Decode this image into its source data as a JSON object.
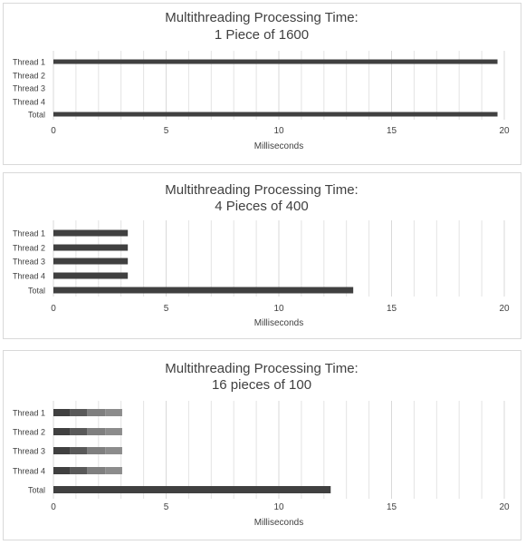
{
  "colors": {
    "bar": "#404040",
    "grid": "#e3e3e3",
    "text": "#404040",
    "border": "#d9d9d9"
  },
  "chart_data": [
    {
      "type": "bar",
      "orientation": "horizontal",
      "title": "Multithreading Processing Time:",
      "subtitle": "1 Piece of 1600",
      "xlabel": "Milliseconds",
      "xlim": [
        0,
        20
      ],
      "xticks": [
        "0",
        "5",
        "10",
        "15",
        "20"
      ],
      "grid": true,
      "categories": [
        "Thread 1",
        "Thread 2",
        "Thread 3",
        "Thread 4",
        "Total"
      ],
      "values": [
        19.7,
        0,
        0,
        0,
        19.7
      ]
    },
    {
      "type": "bar",
      "orientation": "horizontal",
      "title": "Multithreading Processing Time:",
      "subtitle": "4 Pieces of 400",
      "xlabel": "Milliseconds",
      "xlim": [
        0,
        20
      ],
      "xticks": [
        "0",
        "5",
        "10",
        "15",
        "20"
      ],
      "grid": true,
      "categories": [
        "Thread 1",
        "Thread 2",
        "Thread 3",
        "Thread 4",
        "Total"
      ],
      "values": [
        3.3,
        3.3,
        3.3,
        3.3,
        13.3
      ]
    },
    {
      "type": "bar",
      "orientation": "horizontal",
      "stacked": true,
      "title": "Multithreading Processing Time:",
      "subtitle": "16 pieces of 100",
      "xlabel": "Milliseconds",
      "xlim": [
        0,
        20
      ],
      "xticks": [
        "0",
        "5",
        "10",
        "15",
        "20"
      ],
      "grid": true,
      "categories": [
        "Thread 1",
        "Thread 2",
        "Thread 3",
        "Thread 4",
        "Total"
      ],
      "series": [
        {
          "values": [
            0.75,
            0.75,
            0.75,
            0.75,
            12.3
          ],
          "color": "#404040"
        },
        {
          "values": [
            0.75,
            0.75,
            0.75,
            0.75,
            0
          ],
          "color": "#595959"
        },
        {
          "values": [
            0.8,
            0.8,
            0.8,
            0.8,
            0
          ],
          "color": "#7f7f7f"
        },
        {
          "values": [
            0.75,
            0.75,
            0.75,
            0.75,
            0
          ],
          "color": "#8c8c8c"
        }
      ]
    }
  ]
}
